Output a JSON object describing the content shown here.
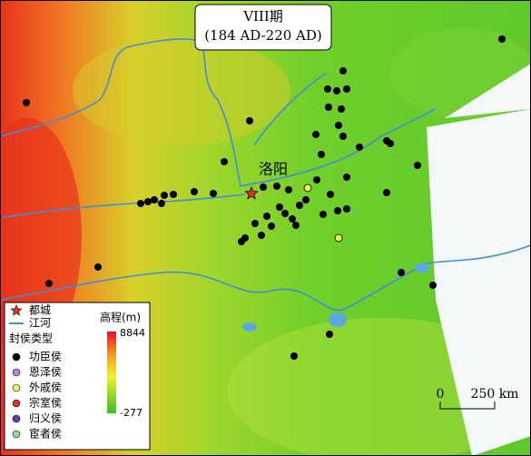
{
  "title": {
    "line1": "VIII期",
    "line2": "(184 AD-220 AD)"
  },
  "capital_label": "洛阳",
  "legend": {
    "capital": "都城",
    "river": "江河",
    "category_title": "封侯类型",
    "categories": [
      {
        "label": "功臣侯",
        "color": "#000000"
      },
      {
        "label": "恩泽侯",
        "color": "#c77dd6"
      },
      {
        "label": "外戚侯",
        "color": "#f2ee5a"
      },
      {
        "label": "宗室侯",
        "color": "#e8321e"
      },
      {
        "label": "归义侯",
        "color": "#6a36b8"
      },
      {
        "label": "宦者侯",
        "color": "#8fe08a"
      }
    ]
  },
  "elevation": {
    "title": "高程(m)",
    "max": 8844,
    "min": -277
  },
  "scale_bar": {
    "start": 0,
    "end": "250 km"
  }
}
